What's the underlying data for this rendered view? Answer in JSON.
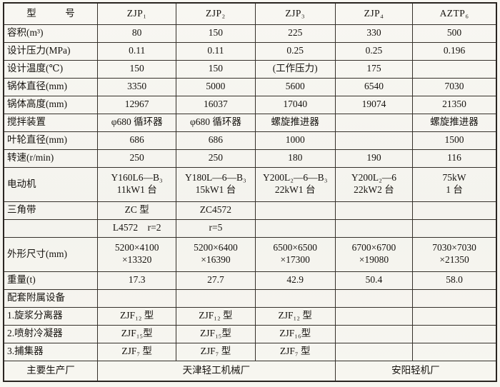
{
  "table": {
    "header": {
      "label": "型　　　号",
      "models": [
        "ZJP₁",
        "ZJP₂",
        "ZJP₃",
        "ZJP₄",
        "AZTP₆"
      ]
    },
    "rows": [
      {
        "label": "容积(m³)",
        "tall": false,
        "cells": [
          "80",
          "150",
          "225",
          "330",
          "500"
        ]
      },
      {
        "label": "设计压力(MPa)",
        "tall": false,
        "cells": [
          "0.11",
          "0.11",
          "0.25",
          "0.25",
          "0.196"
        ]
      },
      {
        "label": "设计温度(℃)",
        "tall": false,
        "cells": [
          "150",
          "150",
          "(工作压力)",
          "175",
          ""
        ]
      },
      {
        "label": "锅体直径(mm)",
        "tall": false,
        "cells": [
          "3350",
          "5000",
          "5600",
          "6540",
          "7030"
        ]
      },
      {
        "label": "锅体高度(mm)",
        "tall": false,
        "cells": [
          "12967",
          "16037",
          "17040",
          "19074",
          "21350"
        ]
      },
      {
        "label": "搅拌装置",
        "tall": false,
        "cells": [
          "φ680 循环器",
          "φ680 循环器",
          "螺旋推进器",
          "",
          "螺旋推进器"
        ]
      },
      {
        "label": "叶轮直径(mm)",
        "tall": false,
        "cells": [
          "686",
          "686",
          "1000",
          "",
          "1500"
        ]
      },
      {
        "label": "转速(r/min)",
        "tall": false,
        "cells": [
          "250",
          "250",
          "180",
          "190",
          "116"
        ]
      },
      {
        "label": "电动机",
        "tall": true,
        "cells": [
          "Y160L6—B₃\n11kW1 台",
          "Y180L—6—B₃\n15kW1 台",
          "Y200L₂—6—B₃\n22kW1 台",
          "Y200L₂—6\n22kW2 台",
          "75kW\n1 台"
        ]
      },
      {
        "label": "三角带",
        "tall": false,
        "cells": [
          "ZC 型",
          "ZC4572",
          "",
          "",
          ""
        ]
      },
      {
        "label": "",
        "tall": false,
        "cells": [
          "L4572　r=2",
          "r=5",
          "",
          "",
          ""
        ]
      },
      {
        "label": "外形尺寸(mm)",
        "tall": true,
        "cells": [
          "5200×4100\n×13320",
          "5200×6400\n×16390",
          "6500×6500\n×17300",
          "6700×6700\n×19080",
          "7030×7030\n×21350"
        ]
      },
      {
        "label": "重量(t)",
        "tall": false,
        "cells": [
          "17.3",
          "27.7",
          "42.9",
          "50.4",
          "58.0"
        ]
      },
      {
        "label": "配套附属设备",
        "tall": false,
        "cells": [
          "",
          "",
          "",
          "",
          ""
        ]
      },
      {
        "label": "1.旋浆分离器",
        "tall": false,
        "cells": [
          "ZJF₁₂ 型",
          "ZJF₁₂ 型",
          "ZJF₁₂ 型",
          "",
          ""
        ]
      },
      {
        "label": "2.喷射冷凝器",
        "tall": false,
        "cells": [
          "ZJF₁₅型",
          "ZJF₁₅型",
          "ZJF₁₆型",
          "",
          ""
        ]
      },
      {
        "label": "3.捕集器",
        "tall": false,
        "cells": [
          "ZJF₇ 型",
          "ZJF₇ 型",
          "ZJF₇ 型",
          "",
          ""
        ]
      }
    ],
    "footer": {
      "label": "主要生产厂",
      "manufacturers": [
        {
          "name": "天津轻工机械厂",
          "span": 3
        },
        {
          "name": "安阳轻机厂",
          "span": 2
        }
      ]
    }
  }
}
